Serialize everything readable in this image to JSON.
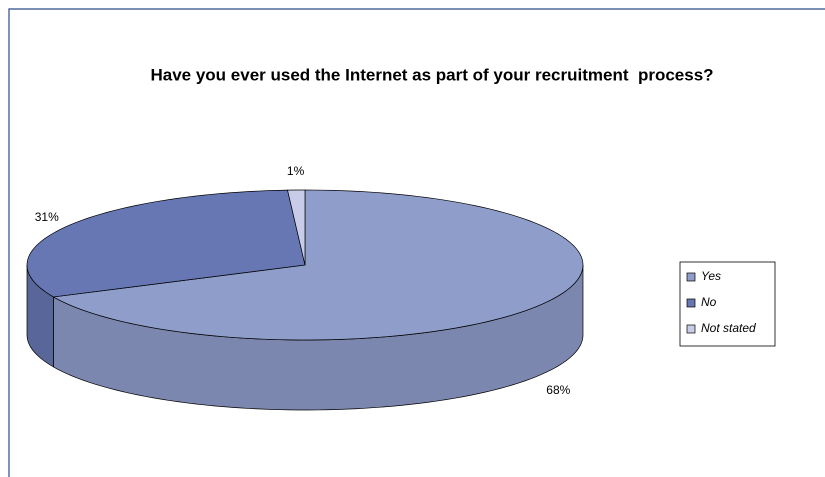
{
  "chart_data": {
    "type": "pie",
    "title": "Have you ever used the Internet as part of your recruitment  process?",
    "categories": [
      "Yes",
      "No",
      "Not stated"
    ],
    "values": [
      68,
      31,
      1
    ],
    "value_labels": [
      "68%",
      "31%",
      "1%"
    ],
    "colors": [
      "#8f9dca",
      "#6677b3",
      "#c8cce8"
    ],
    "legend": "right"
  }
}
